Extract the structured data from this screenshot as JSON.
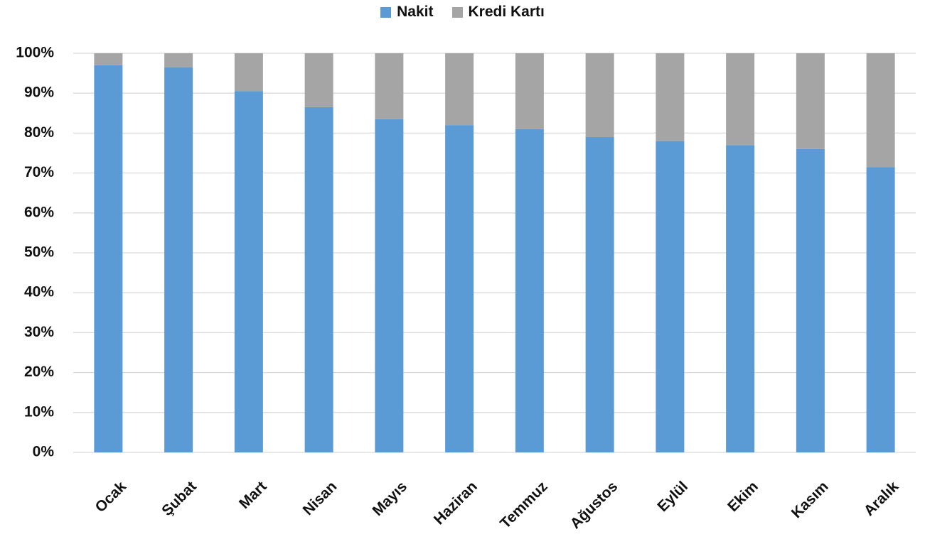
{
  "chart_data": {
    "type": "bar",
    "stacked": true,
    "percent_stacked": true,
    "title": "",
    "xlabel": "",
    "ylabel": "",
    "ylim": [
      0,
      100
    ],
    "y_ticks": [
      "0%",
      "10%",
      "20%",
      "30%",
      "40%",
      "50%",
      "60%",
      "70%",
      "80%",
      "90%",
      "100%"
    ],
    "grid": true,
    "legend_position": "top",
    "categories": [
      "Ocak",
      "Şubat",
      "Mart",
      "Nisan",
      "Mayıs",
      "Haziran",
      "Temmuz",
      "Ağustos",
      "Eylül",
      "Ekim",
      "Kasım",
      "Aralık"
    ],
    "series": [
      {
        "name": "Nakit",
        "color": "#5B9BD5",
        "values": [
          97,
          96.5,
          90.5,
          86.5,
          83.5,
          82,
          81,
          79,
          78,
          77,
          76,
          71.5
        ]
      },
      {
        "name": "Kredi Kartı",
        "color": "#A5A5A5",
        "values": [
          3,
          3.5,
          9.5,
          13.5,
          16.5,
          18,
          19,
          21,
          22,
          23,
          24,
          28.5
        ]
      }
    ]
  }
}
